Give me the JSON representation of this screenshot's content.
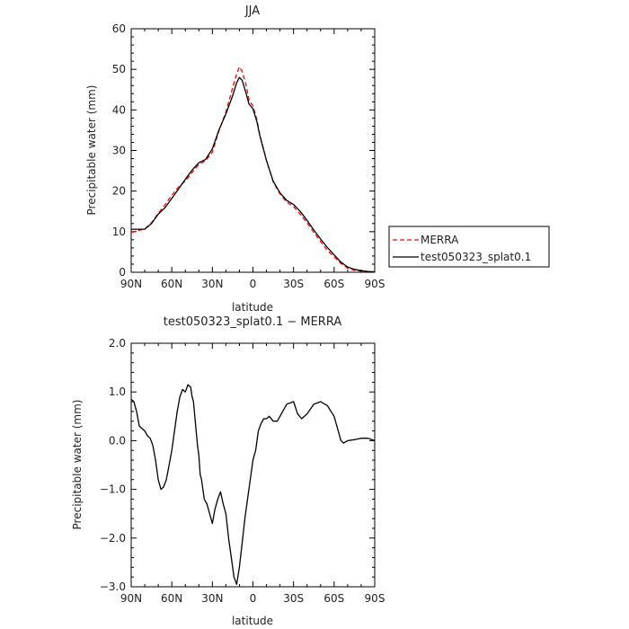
{
  "chart_data": [
    {
      "type": "line",
      "title": "JJA",
      "xlabel": "latitude",
      "ylabel": "Precipitable water (mm)",
      "xlim": [
        90,
        -90
      ],
      "ylim": [
        0,
        60
      ],
      "xticks": [
        90,
        60,
        30,
        0,
        -30,
        -60,
        -90
      ],
      "xtick_labels": [
        "90N",
        "60N",
        "30N",
        "0",
        "30S",
        "60S",
        "90S"
      ],
      "yticks": [
        0,
        10,
        20,
        30,
        40,
        50,
        60
      ],
      "ytick_labels": [
        "0",
        "10",
        "20",
        "30",
        "40",
        "50",
        "60"
      ],
      "legend": "right",
      "series": [
        {
          "name": "MERRA",
          "color": "#ff0000",
          "style": "dashed",
          "x": [
            90,
            85,
            80,
            75,
            70,
            65,
            60,
            55,
            50,
            45,
            40,
            35,
            30,
            25,
            20,
            15,
            12,
            10,
            8,
            5,
            3,
            0,
            -3,
            -5,
            -10,
            -15,
            -20,
            -25,
            -30,
            -35,
            -40,
            -45,
            -50,
            -55,
            -60,
            -65,
            -70,
            -75,
            -80,
            -85,
            -90
          ],
          "y": [
            9.8,
            10.3,
            10.7,
            12.2,
            14.5,
            16.6,
            19.0,
            21.0,
            22.5,
            24.6,
            26.6,
            27.5,
            29.6,
            35.0,
            39.5,
            45.5,
            48.9,
            50.6,
            49.5,
            46.0,
            42.5,
            41.0,
            37.5,
            34.0,
            27.5,
            22.2,
            19.3,
            17.3,
            16.2,
            14.3,
            12.2,
            9.8,
            7.6,
            5.4,
            3.8,
            2.2,
            1.0,
            0.5,
            0.3,
            0.2,
            0.1
          ]
        },
        {
          "name": "test050323_splat0.1",
          "color": "#000000",
          "style": "solid",
          "x": [
            90,
            85,
            80,
            75,
            70,
            65,
            60,
            55,
            50,
            45,
            40,
            35,
            30,
            25,
            20,
            15,
            12,
            10,
            8,
            5,
            3,
            0,
            -3,
            -5,
            -10,
            -15,
            -20,
            -25,
            -30,
            -35,
            -40,
            -45,
            -50,
            -55,
            -60,
            -65,
            -70,
            -75,
            -80,
            -85,
            -90
          ],
          "y": [
            10.6,
            10.6,
            10.6,
            12.0,
            14.3,
            15.9,
            18.2,
            20.5,
            22.9,
            25.2,
            27.0,
            27.8,
            30.4,
            35.2,
            39.0,
            43.5,
            46.7,
            48.0,
            47.3,
            44.0,
            41.5,
            40.3,
            37.0,
            33.8,
            27.5,
            22.4,
            19.6,
            17.7,
            16.7,
            15.0,
            12.8,
            10.4,
            8.2,
            6.1,
            4.3,
            2.5,
            1.3,
            0.7,
            0.4,
            0.2,
            0.1
          ]
        }
      ]
    },
    {
      "type": "line",
      "title": "test050323_splat0.1 − MERRA",
      "xlabel": "latitude",
      "ylabel": "Precipitable water (mm)",
      "xlim": [
        90,
        -90
      ],
      "ylim": [
        -3.0,
        2.0
      ],
      "xticks": [
        90,
        60,
        30,
        0,
        -30,
        -60,
        -90
      ],
      "xtick_labels": [
        "90N",
        "60N",
        "30N",
        "0",
        "30S",
        "60S",
        "90S"
      ],
      "yticks": [
        -3.0,
        -2.0,
        -1.0,
        0.0,
        1.0,
        2.0
      ],
      "ytick_labels": [
        "−3.0",
        "−2.0",
        "−1.0",
        "0.0",
        "1.0",
        "2.0"
      ],
      "series": [
        {
          "color": "#000000",
          "style": "solid",
          "x": [
            90,
            88,
            86,
            84,
            82,
            80,
            78,
            76,
            74,
            72,
            70,
            68,
            66,
            64,
            62,
            60,
            58,
            56,
            54,
            52,
            50,
            48,
            46,
            45,
            44,
            43,
            42,
            41,
            40,
            39,
            38,
            36,
            34,
            32,
            30,
            28,
            26,
            24,
            22,
            20,
            18,
            16,
            14,
            12,
            10,
            8,
            6,
            4,
            2,
            0,
            -2,
            -4,
            -6,
            -8,
            -10,
            -12,
            -15,
            -18,
            -20,
            -25,
            -30,
            -33,
            -36,
            -40,
            -45,
            -50,
            -55,
            -60,
            -63,
            -65,
            -67,
            -70,
            -75,
            -80,
            -85,
            -90
          ],
          "y": [
            0.85,
            0.8,
            0.6,
            0.3,
            0.25,
            0.2,
            0.1,
            0.05,
            -0.1,
            -0.4,
            -0.8,
            -1.0,
            -0.95,
            -0.8,
            -0.5,
            -0.2,
            0.2,
            0.6,
            0.9,
            1.05,
            1.0,
            1.15,
            1.1,
            0.9,
            0.8,
            0.5,
            0.2,
            -0.1,
            -0.3,
            -0.7,
            -0.8,
            -1.2,
            -1.3,
            -1.5,
            -1.7,
            -1.4,
            -1.2,
            -1.05,
            -1.3,
            -1.5,
            -2.0,
            -2.4,
            -2.8,
            -2.95,
            -2.6,
            -2.1,
            -1.6,
            -1.2,
            -0.8,
            -0.4,
            -0.2,
            0.2,
            0.35,
            0.45,
            0.45,
            0.5,
            0.4,
            0.4,
            0.5,
            0.75,
            0.8,
            0.55,
            0.45,
            0.55,
            0.75,
            0.8,
            0.72,
            0.5,
            0.2,
            0.0,
            -0.05,
            0.0,
            0.02,
            0.05,
            0.05,
            0.0
          ]
        }
      ]
    }
  ]
}
